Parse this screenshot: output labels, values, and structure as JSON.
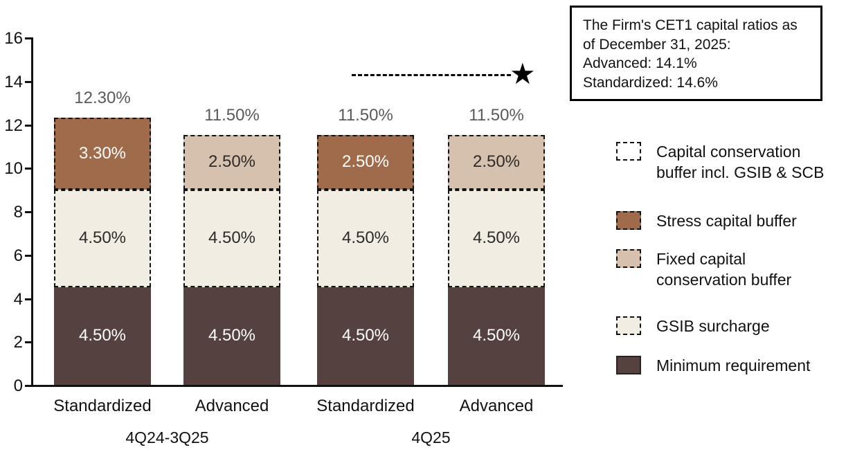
{
  "note_box": {
    "lines": [
      "The Firm's CET1 capital ratios as",
      "of December 31, 2025:",
      "Advanced: 14.1%",
      "Standardized: 14.6%"
    ]
  },
  "legend": {
    "items": [
      {
        "name": "capital-conservation-buffer",
        "lines": [
          "Capital conservation",
          "buffer incl. GSIB & SCB"
        ],
        "swatch_color": "#ffffff",
        "swatch_border_style": "dashed",
        "swatch_border_color": "#111111"
      },
      {
        "name": "stress-capital-buffer",
        "lines": [
          "Stress capital buffer"
        ],
        "swatch_color": "#a06b4a",
        "swatch_border_style": "dashed",
        "swatch_border_color": "#111111"
      },
      {
        "name": "fixed-capital-conservation-buffer",
        "lines": [
          "Fixed capital",
          "conservation buffer"
        ],
        "swatch_color": "#d5c1ad",
        "swatch_border_style": "dashed",
        "swatch_border_color": "#111111"
      },
      {
        "name": "gsib-surcharge",
        "lines": [
          "GSIB surcharge"
        ],
        "swatch_color": "#f2ede2",
        "swatch_border_style": "dashed",
        "swatch_border_color": "#111111"
      },
      {
        "name": "minimum-requirement",
        "lines": [
          "Minimum requirement"
        ],
        "swatch_color": "#554240",
        "swatch_border_style": "solid",
        "swatch_border_color": "#2b211f"
      }
    ]
  },
  "chart_data": {
    "type": "bar",
    "stacked": true,
    "title": "",
    "xlabel": "",
    "ylabel": "",
    "ylim": [
      0,
      16
    ],
    "yticks": [
      0,
      2,
      4,
      6,
      8,
      10,
      12,
      14,
      16
    ],
    "grid": false,
    "legend_position": "right",
    "segment_colors": {
      "Minimum requirement": "#554240",
      "GSIB surcharge": "#f2ede2",
      "Stress capital buffer": "#a06b4a",
      "Fixed capital conservation buffer": "#d5c1ad"
    },
    "segment_label_colors": {
      "Minimum requirement": "#ffffff",
      "GSIB surcharge": "#2e2a28",
      "Stress capital buffer": "#ffffff",
      "Fixed capital conservation buffer": "#2e2a28"
    },
    "total_label_color": "#595959",
    "target_line": {
      "value": 14.25,
      "marker": "star",
      "relates_to": "note_box"
    },
    "groups": [
      {
        "label": "4Q24-3Q25",
        "bars": [
          {
            "label": "Standardized",
            "total": 12.3,
            "total_label": "12.30%",
            "segments": [
              {
                "name": "Minimum requirement",
                "value": 4.5,
                "label": "4.50%"
              },
              {
                "name": "GSIB surcharge",
                "value": 4.5,
                "label": "4.50%"
              },
              {
                "name": "Stress capital buffer",
                "value": 3.3,
                "label": "3.30%"
              }
            ]
          },
          {
            "label": "Advanced",
            "total": 11.5,
            "total_label": "11.50%",
            "segments": [
              {
                "name": "Minimum requirement",
                "value": 4.5,
                "label": "4.50%"
              },
              {
                "name": "GSIB surcharge",
                "value": 4.5,
                "label": "4.50%"
              },
              {
                "name": "Fixed capital conservation buffer",
                "value": 2.5,
                "label": "2.50%"
              }
            ]
          }
        ]
      },
      {
        "label": "4Q25",
        "bars": [
          {
            "label": "Standardized",
            "total": 11.5,
            "total_label": "11.50%",
            "segments": [
              {
                "name": "Minimum requirement",
                "value": 4.5,
                "label": "4.50%"
              },
              {
                "name": "GSIB surcharge",
                "value": 4.5,
                "label": "4.50%"
              },
              {
                "name": "Stress capital buffer",
                "value": 2.5,
                "label": "2.50%"
              }
            ]
          },
          {
            "label": "Advanced",
            "total": 11.5,
            "total_label": "11.50%",
            "segments": [
              {
                "name": "Minimum requirement",
                "value": 4.5,
                "label": "4.50%"
              },
              {
                "name": "GSIB surcharge",
                "value": 4.5,
                "label": "4.50%"
              },
              {
                "name": "Fixed capital conservation buffer",
                "value": 2.5,
                "label": "2.50%"
              }
            ]
          }
        ]
      }
    ]
  }
}
